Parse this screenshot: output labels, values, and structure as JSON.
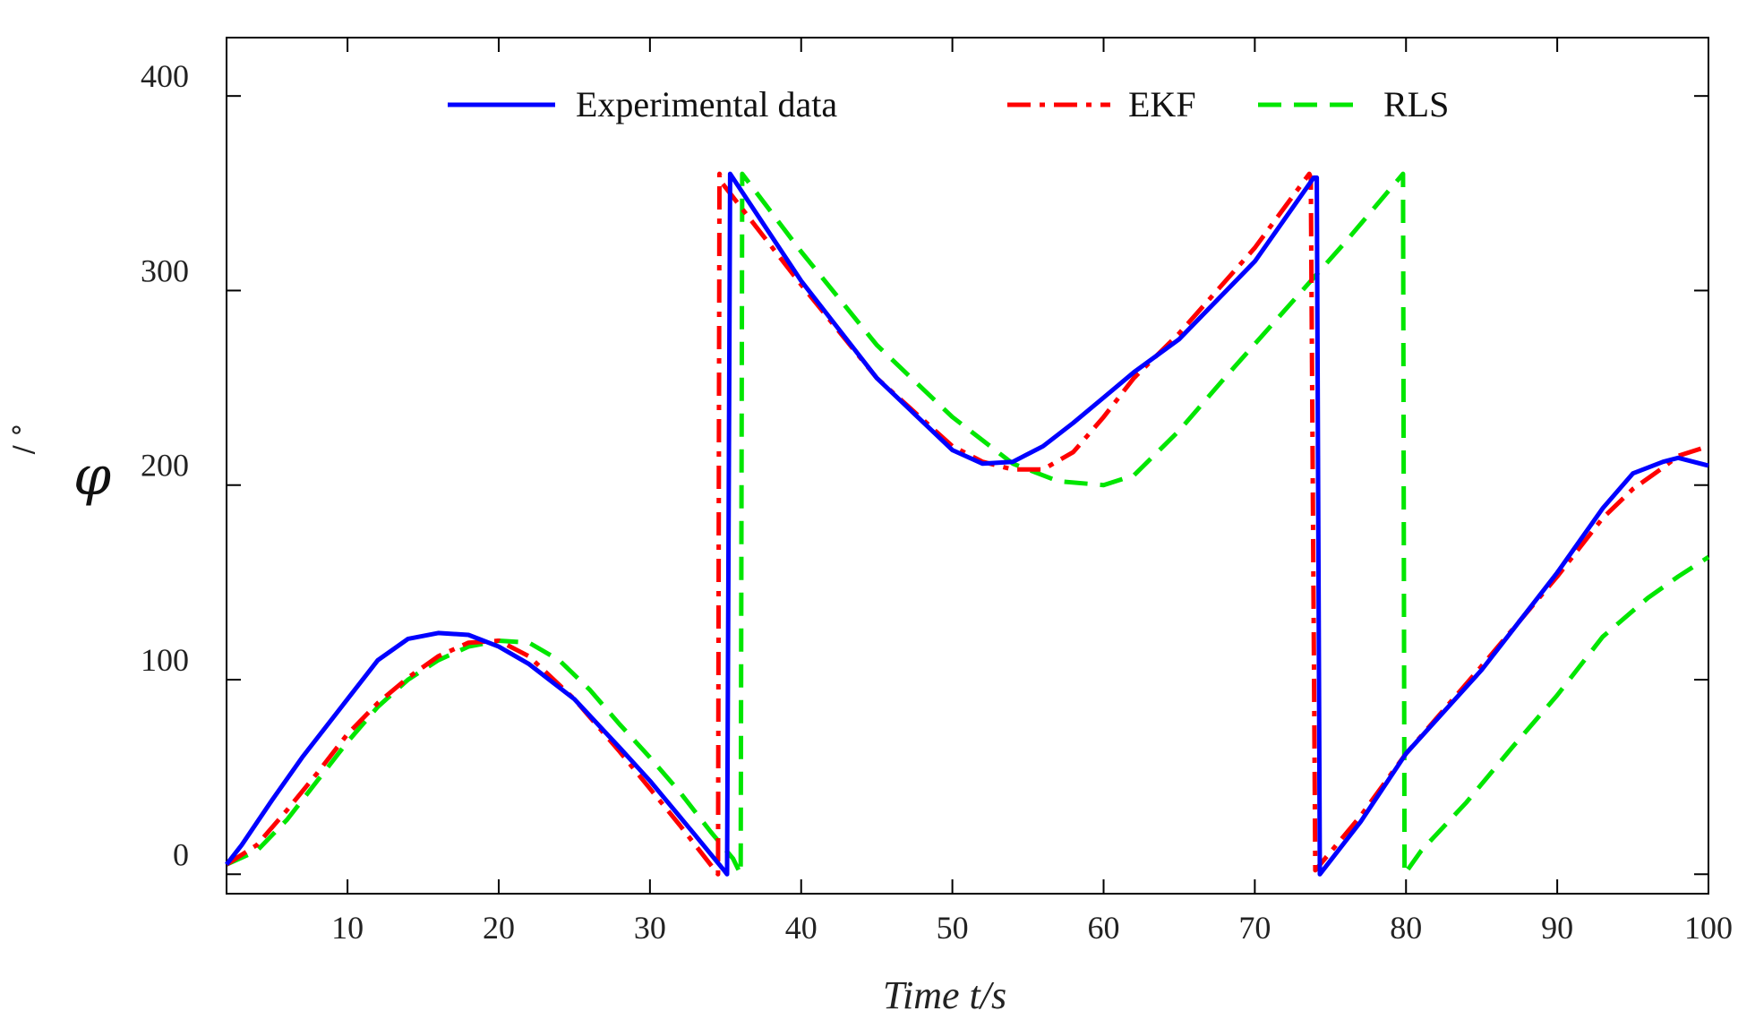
{
  "chart_data": {
    "type": "line",
    "title": "",
    "xlabel": "Time t/s",
    "ylabel": "φ",
    "ylabel_unit": "/ °",
    "xlim": [
      2,
      100
    ],
    "ylim": [
      -10,
      430
    ],
    "xticks": [
      10,
      20,
      30,
      40,
      50,
      60,
      70,
      80,
      90,
      100
    ],
    "yticks": [
      0,
      100,
      200,
      300,
      400
    ],
    "legend_position": "top",
    "grid": false,
    "series": [
      {
        "name": "Experimental data",
        "color": "#0000ff",
        "style": "solid",
        "x": [
          2,
          3,
          5,
          7,
          10,
          12,
          14,
          16,
          18,
          20,
          22,
          25,
          28,
          30,
          33,
          34.9,
          35.1,
          35.3,
          40,
          45,
          50,
          52,
          54,
          56,
          58,
          60,
          62,
          65,
          70,
          73.9,
          74.1,
          74.3,
          77,
          80,
          85,
          87,
          90,
          93,
          95,
          97,
          98,
          100
        ],
        "y": [
          5,
          15,
          38,
          60,
          90,
          110,
          121,
          124,
          123,
          117,
          108,
          90,
          65,
          48,
          20,
          2,
          0,
          360,
          305,
          255,
          218,
          211,
          212,
          220,
          232,
          245,
          258,
          275,
          315,
          358,
          358,
          0,
          27,
          62,
          105,
          125,
          155,
          188,
          206,
          212,
          214,
          210
        ]
      },
      {
        "name": "EKF",
        "color": "#ff0000",
        "style": "dashdot",
        "x": [
          2,
          4,
          6,
          8,
          10,
          12,
          14,
          16,
          18,
          20,
          22,
          25,
          28,
          30,
          32,
          34.5,
          34.6,
          34.8,
          40,
          45,
          50,
          52,
          54,
          56,
          58,
          60,
          62,
          65,
          70,
          73.6,
          73.7,
          74,
          77,
          80,
          85,
          90,
          93,
          95,
          97,
          98,
          100
        ],
        "y": [
          5,
          15,
          33,
          52,
          72,
          88,
          101,
          112,
          119,
          120,
          112,
          90,
          63,
          44,
          25,
          0,
          360,
          355,
          303,
          255,
          220,
          212,
          208,
          208,
          217,
          235,
          255,
          278,
          322,
          360,
          358,
          2,
          30,
          62,
          107,
          153,
          183,
          198,
          209,
          215,
          220
        ]
      },
      {
        "name": "RLS",
        "color": "#00e600",
        "style": "dashed",
        "x": [
          2,
          4,
          6,
          8,
          10,
          12,
          14,
          16,
          18,
          20,
          22,
          24,
          26,
          28,
          30,
          32,
          34,
          35.5,
          36,
          36.1,
          40,
          45,
          50,
          54,
          57,
          60,
          62,
          65,
          68,
          72,
          76,
          79.8,
          79.9,
          81,
          84,
          87,
          90,
          93,
          96,
          98,
          100
        ],
        "y": [
          5,
          12,
          28,
          48,
          68,
          86,
          100,
          110,
          117,
          120,
          119,
          110,
          95,
          77,
          60,
          42,
          22,
          8,
          0,
          360,
          320,
          272,
          235,
          211,
          202,
          200,
          205,
          228,
          255,
          290,
          325,
          360,
          0,
          12,
          37,
          65,
          92,
          122,
          142,
          153,
          163
        ]
      }
    ]
  }
}
